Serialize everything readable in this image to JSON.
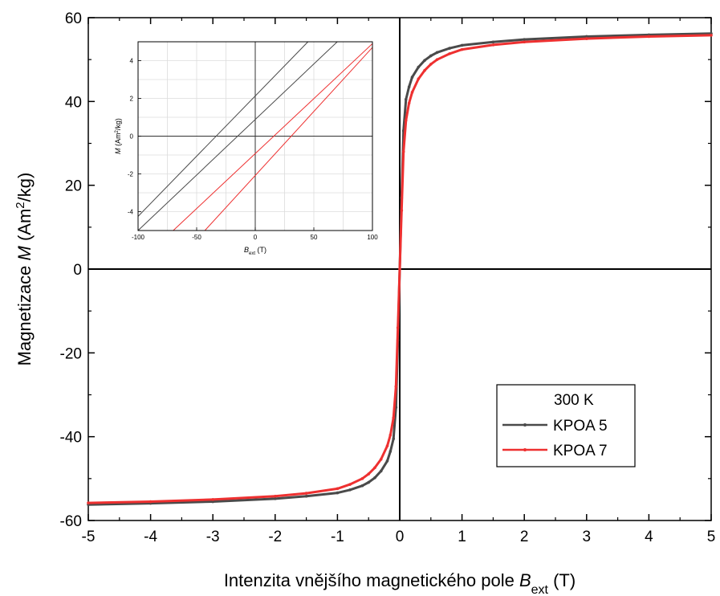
{
  "chart_data": [
    {
      "type": "line",
      "xlabel_main": "Intenzita vnějšího magnetického pole ",
      "xlabel_symbol": "B",
      "xlabel_subscript": "ext",
      "xlabel_unit": " (T)",
      "ylabel_main": "Magnetizace ",
      "ylabel_symbol": "M",
      "ylabel_unit_pre": " (Am",
      "ylabel_unit_sup": "2",
      "ylabel_unit_post": "/kg)",
      "xlim": [
        -5,
        5
      ],
      "ylim": [
        -60,
        60
      ],
      "xticks": [
        -5,
        -4,
        -3,
        -2,
        -1,
        0,
        1,
        2,
        3,
        4,
        5
      ],
      "yticks": [
        -60,
        -40,
        -20,
        0,
        20,
        40,
        60
      ],
      "xtick_labels": [
        "-5",
        "-4",
        "-3",
        "-2",
        "-1",
        "0",
        "1",
        "2",
        "3",
        "4",
        "5"
      ],
      "ytick_labels": [
        "-60",
        "-40",
        "-20",
        "0",
        "20",
        "40",
        "60"
      ],
      "grid": false,
      "legend": {
        "placement": "bottom-right",
        "title": "300 K",
        "entries": [
          "KPOA 5",
          "KPOA 7"
        ]
      },
      "series": [
        {
          "name": "KPOA 5",
          "color": "#4a4a4a",
          "x": [
            -5.0,
            -4.0,
            -3.0,
            -2.0,
            -1.5,
            -1.0,
            -0.8,
            -0.6,
            -0.5,
            -0.4,
            -0.3,
            -0.2,
            -0.15,
            -0.1,
            -0.06,
            -0.03,
            0.0,
            0.03,
            0.06,
            0.1,
            0.15,
            0.2,
            0.3,
            0.4,
            0.5,
            0.6,
            0.8,
            1.0,
            1.5,
            2.0,
            3.0,
            4.0,
            5.0
          ],
          "y": [
            -56.2,
            -55.9,
            -55.5,
            -54.8,
            -54.2,
            -53.4,
            -52.7,
            -51.7,
            -50.9,
            -49.8,
            -48.2,
            -45.8,
            -43.5,
            -40.5,
            -33.0,
            -17.0,
            0.0,
            17.0,
            33.0,
            40.5,
            43.5,
            45.8,
            48.2,
            49.8,
            50.9,
            51.7,
            52.7,
            53.4,
            54.2,
            54.8,
            55.5,
            55.9,
            56.2
          ]
        },
        {
          "name": "KPOA 7",
          "color": "#ee3030",
          "x": [
            -5.0,
            -4.0,
            -3.0,
            -2.0,
            -1.5,
            -1.0,
            -0.8,
            -0.6,
            -0.5,
            -0.4,
            -0.3,
            -0.2,
            -0.15,
            -0.1,
            -0.06,
            -0.03,
            0.0,
            0.03,
            0.06,
            0.1,
            0.15,
            0.2,
            0.3,
            0.4,
            0.5,
            0.6,
            0.8,
            1.0,
            1.5,
            2.0,
            3.0,
            4.0,
            5.0
          ],
          "y": [
            -55.8,
            -55.5,
            -55.0,
            -54.2,
            -53.5,
            -52.4,
            -51.4,
            -50.0,
            -48.9,
            -47.4,
            -45.4,
            -42.2,
            -39.6,
            -35.5,
            -28.0,
            -14.0,
            0.0,
            14.0,
            28.0,
            35.5,
            39.6,
            42.2,
            45.4,
            47.4,
            48.9,
            50.0,
            51.4,
            52.4,
            53.5,
            54.2,
            55.0,
            55.5,
            55.8
          ]
        }
      ]
    },
    {
      "type": "line",
      "inset": true,
      "xlabel_symbol": "B",
      "xlabel_subscript": "ext",
      "xlabel_unit": " (T)",
      "ylabel_symbol": "M",
      "ylabel_unit_pre": " (Am",
      "ylabel_unit_sup": "2",
      "ylabel_unit_post": "/kg)",
      "xlim": [
        -100,
        100
      ],
      "ylim": [
        -5,
        5
      ],
      "xticks": [
        -100,
        -50,
        0,
        50,
        100
      ],
      "yticks": [
        -4,
        -2,
        0,
        2,
        4
      ],
      "xtick_labels": [
        "-100",
        "-50",
        "0",
        "50",
        "100"
      ],
      "ytick_labels": [
        "-4",
        "-2",
        "0",
        "2",
        "4"
      ],
      "grid": true,
      "series": [
        {
          "color": "#4a4a4a",
          "x": [
            -100,
            45
          ],
          "y": [
            -4.25,
            5.0
          ]
        },
        {
          "color": "#4a4a4a",
          "x": [
            -100,
            70
          ],
          "y": [
            -5.0,
            5.0
          ]
        },
        {
          "color": "#ee3030",
          "x": [
            -70,
            100
          ],
          "y": [
            -5.0,
            4.9
          ]
        },
        {
          "color": "#ee3030",
          "x": [
            -43,
            100
          ],
          "y": [
            -5.0,
            4.7
          ]
        }
      ]
    }
  ]
}
